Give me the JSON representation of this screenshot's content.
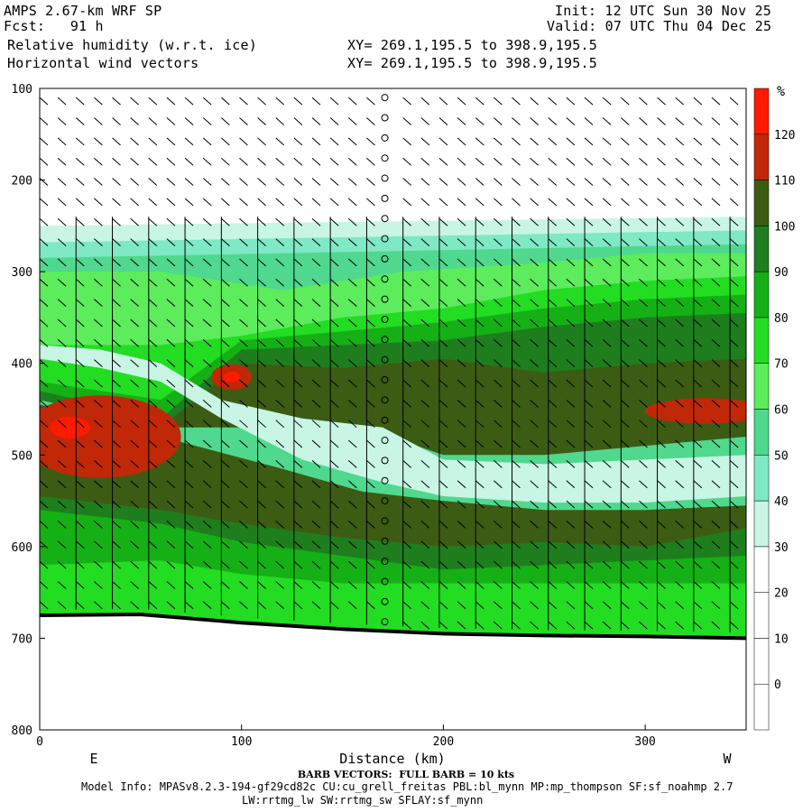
{
  "header": {
    "model": "AMPS 2.67-km WRF SP",
    "fcst": "Fcst:   91 h",
    "field1": "Relative humidity (w.r.t. ice)",
    "field2": "Horizontal wind vectors",
    "init": "Init: 12 UTC Sun 30 Nov 25",
    "valid": "Valid: 07 UTC Thu 04 Dec 25",
    "xy1": "XY= 269.1,195.5 to 398.9,195.5",
    "xy2": "XY= 269.1,195.5 to 398.9,195.5"
  },
  "footer": {
    "barb_note": "BARB VECTORS:  FULL BARB = 10 kts",
    "model_info": "Model Info: MPASv8.2.3-194-gf29cd82c CU:cu_grell_freitas PBL:bl_mynn MP:mp_thompson SF:sf_noahmp 2.7",
    "model_info2": "LW:rrtmg_lw SW:rrtmg_sw SFLAY:sf_mynn"
  },
  "colors": {
    "rh_0_30": "#ffffff",
    "rh_30_40": "#c8f5e4",
    "rh_40_50": "#7fe8c4",
    "rh_50_60": "#4fd88e",
    "rh_60_70": "#5cec5c",
    "rh_70_80": "#22dd22",
    "rh_80_90": "#15b015",
    "rh_90_100": "#1e7e1e",
    "rh_100_110": "#3c5c14",
    "rh_110_120": "#c02808",
    "rh_120_plus": "#ff1a00",
    "terrain": "#000000"
  },
  "chart_data": {
    "type": "heatmap",
    "title": "Relative humidity (w.r.t. ice)",
    "overlay": "Horizontal wind vectors (barbs)",
    "xlabel": "Distance (km)",
    "xlim": [
      0,
      350
    ],
    "ylim": [
      800,
      100
    ],
    "y_inverted": true,
    "x_ticks": [
      "0",
      "100",
      "200",
      "300"
    ],
    "y_ticks": [
      "100",
      "200",
      "300",
      "400",
      "500",
      "600",
      "700",
      "800"
    ],
    "x_end_labels": {
      "left": "E",
      "right": "W"
    },
    "colorbar": {
      "unit": "%",
      "levels": [
        0,
        10,
        20,
        30,
        40,
        50,
        60,
        70,
        80,
        90,
        100,
        110,
        120
      ]
    },
    "surface_pressure": [
      [
        0,
        675
      ],
      [
        50,
        674
      ],
      [
        100,
        683
      ],
      [
        150,
        690
      ],
      [
        200,
        695
      ],
      [
        250,
        697
      ],
      [
        300,
        698
      ],
      [
        350,
        700
      ]
    ],
    "features": [
      {
        "region": "dry upper layer",
        "rh": "< 20",
        "p_range": [
          100,
          240
        ]
      },
      {
        "region": "moist band x 0-60 km",
        "rh": "110-120",
        "p_range": [
          450,
          520
        ]
      },
      {
        "region": "moist core x ~95 km",
        "rh": "110-120",
        "p_range": [
          405,
          425
        ]
      },
      {
        "region": "moist band x 310-350 km",
        "rh": "110-120",
        "p_range": [
          440,
          465
        ]
      },
      {
        "region": "drier slot",
        "rh": "30-40",
        "p_range": [
          500,
          560
        ]
      }
    ]
  }
}
